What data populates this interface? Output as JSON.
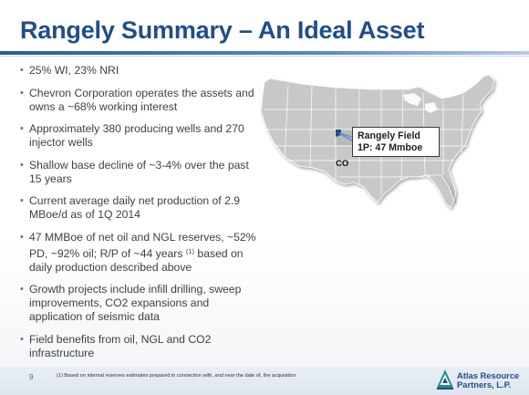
{
  "slide": {
    "title": "Rangely Summary – An Ideal Asset",
    "page_number": "9",
    "footnote": "(1)  Based on internal reserves estimates prepared in connection with, and near the date of, the acquisition"
  },
  "bullets": [
    {
      "text": "25% WI, 23% NRI"
    },
    {
      "text": "Chevron Corporation operates the assets and owns a ~68% working interest"
    },
    {
      "text": "Approximately 380 producing wells and 270 injector wells"
    },
    {
      "text": "Shallow base decline of ~3-4% over the past 15 years"
    },
    {
      "text": "Current average daily net production of 2.9 MBoe/d as of 1Q 2014"
    },
    {
      "text_before": "47 MMBoe of net oil and NGL reserves, ~52% PD, ~92% oil; R/P of ~44 years ",
      "superscript": "(1)",
      "text_after": " based on daily production described above"
    },
    {
      "text": "Growth projects include infill drilling, sweep improvements, CO2 expansions and application of seismic data"
    },
    {
      "text": "Field benefits from oil, NGL and CO2 infrastructure"
    }
  ],
  "map": {
    "callout_line1": "Rangely Field",
    "callout_line2": "1P: 47 Mmboe",
    "state_label": "CO",
    "highlight_color": "#1f4e8c",
    "land_color": "#c8c8c8"
  },
  "logo": {
    "name_line1": "Atlas Resource",
    "name_line2": "Partners, L.P."
  },
  "colors": {
    "title": "#1f4e8c",
    "body_text": "#404040",
    "footer_band": "#e4eaf1"
  }
}
